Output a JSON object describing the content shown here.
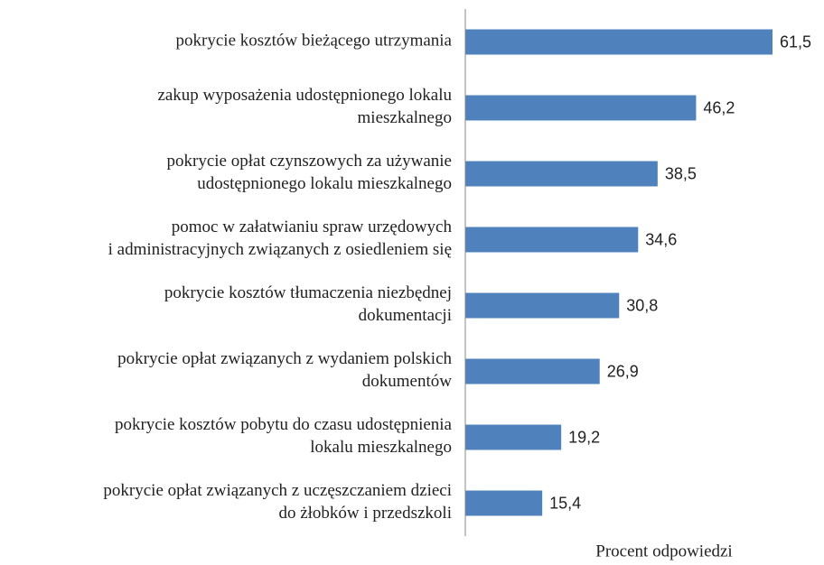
{
  "chart_data": {
    "type": "bar",
    "orientation": "horizontal",
    "categories": [
      "pokrycie kosztów bieżącego utrzymania",
      "zakup wyposażenia udostępnionego lokalu\nmieszkalnego",
      "pokrycie opłat czynszowych za używanie\nudostępnionego lokalu mieszkalnego",
      "pomoc w załatwianiu spraw urzędowych\ni administracyjnych związanych z osiedleniem się",
      "pokrycie kosztów tłumaczenia niezbędnej\ndokumentacji",
      "pokrycie opłat związanych z wydaniem polskich\ndokumentów",
      "pokrycie kosztów pobytu do czasu udostępnienia\nlokalu mieszkalnego",
      "pokrycie opłat związanych z uczęszczaniem dzieci\ndo żłobków i przedszkoli"
    ],
    "values": [
      61.5,
      46.2,
      38.5,
      34.6,
      30.8,
      26.9,
      19.2,
      15.4
    ],
    "value_labels": [
      "61,5",
      "46,2",
      "38,5",
      "34,6",
      "30,8",
      "26,9",
      "19,2",
      "15,4"
    ],
    "color": "#4f81bd",
    "xlabel": "Procent odpowiedzi",
    "xlim": [
      0,
      70
    ]
  }
}
